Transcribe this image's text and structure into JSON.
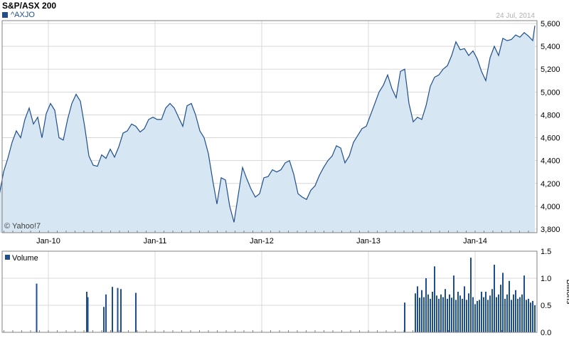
{
  "header": {
    "title": "S&P/ASX 200",
    "symbol": "^AXJO",
    "date": "24 Jul, 2014"
  },
  "watermark": "© Yahoo!7",
  "colors": {
    "line": "#1f4e8c",
    "fill": "#d6e6f2",
    "grid": "#d8d8d8",
    "axis": "#808080",
    "bars": "#1f4e8c"
  },
  "chart_data": [
    {
      "type": "area",
      "title": "S&P/ASX 200",
      "series": [
        {
          "name": "^AXJO",
          "values_note": ""
        }
      ],
      "x_ticks": [
        "Jan-10",
        "Jan-11",
        "Jan-12",
        "Jan-13",
        "Jan-14"
      ],
      "y_ticks": [
        "3,800",
        "4,000",
        "4,200",
        "4,400",
        "4,600",
        "4,800",
        "5,000",
        "5,200",
        "5,400",
        "5,600"
      ],
      "ylim": [
        3760,
        5650
      ],
      "grid": true,
      "points": [
        [
          2009.54,
          4100
        ],
        [
          2009.58,
          4300
        ],
        [
          2009.62,
          4420
        ],
        [
          2009.66,
          4560
        ],
        [
          2009.7,
          4660
        ],
        [
          2009.74,
          4600
        ],
        [
          2009.78,
          4760
        ],
        [
          2009.82,
          4860
        ],
        [
          2009.86,
          4720
        ],
        [
          2009.9,
          4780
        ],
        [
          2009.94,
          4600
        ],
        [
          2009.98,
          4810
        ],
        [
          2010.02,
          4900
        ],
        [
          2010.06,
          4840
        ],
        [
          2010.1,
          4600
        ],
        [
          2010.14,
          4580
        ],
        [
          2010.18,
          4760
        ],
        [
          2010.22,
          4900
        ],
        [
          2010.26,
          4980
        ],
        [
          2010.3,
          4920
        ],
        [
          2010.34,
          4700
        ],
        [
          2010.38,
          4440
        ],
        [
          2010.42,
          4360
        ],
        [
          2010.46,
          4350
        ],
        [
          2010.5,
          4450
        ],
        [
          2010.54,
          4420
        ],
        [
          2010.58,
          4500
        ],
        [
          2010.62,
          4430
        ],
        [
          2010.66,
          4520
        ],
        [
          2010.7,
          4640
        ],
        [
          2010.74,
          4660
        ],
        [
          2010.78,
          4720
        ],
        [
          2010.82,
          4700
        ],
        [
          2010.86,
          4650
        ],
        [
          2010.9,
          4680
        ],
        [
          2010.94,
          4760
        ],
        [
          2010.98,
          4780
        ],
        [
          2011.02,
          4760
        ],
        [
          2011.06,
          4760
        ],
        [
          2011.1,
          4860
        ],
        [
          2011.14,
          4900
        ],
        [
          2011.18,
          4860
        ],
        [
          2011.22,
          4780
        ],
        [
          2011.26,
          4700
        ],
        [
          2011.3,
          4880
        ],
        [
          2011.34,
          4900
        ],
        [
          2011.38,
          4800
        ],
        [
          2011.42,
          4660
        ],
        [
          2011.46,
          4600
        ],
        [
          2011.5,
          4460
        ],
        [
          2011.54,
          4230
        ],
        [
          2011.58,
          4020
        ],
        [
          2011.62,
          4250
        ],
        [
          2011.66,
          4230
        ],
        [
          2011.7,
          4000
        ],
        [
          2011.74,
          3860
        ],
        [
          2011.78,
          4100
        ],
        [
          2011.82,
          4340
        ],
        [
          2011.86,
          4240
        ],
        [
          2011.9,
          4150
        ],
        [
          2011.94,
          4080
        ],
        [
          2011.98,
          4110
        ],
        [
          2012.02,
          4250
        ],
        [
          2012.06,
          4260
        ],
        [
          2012.1,
          4320
        ],
        [
          2012.14,
          4300
        ],
        [
          2012.18,
          4320
        ],
        [
          2012.22,
          4380
        ],
        [
          2012.26,
          4400
        ],
        [
          2012.3,
          4280
        ],
        [
          2012.34,
          4110
        ],
        [
          2012.38,
          4080
        ],
        [
          2012.42,
          4060
        ],
        [
          2012.46,
          4140
        ],
        [
          2012.5,
          4180
        ],
        [
          2012.54,
          4270
        ],
        [
          2012.58,
          4340
        ],
        [
          2012.62,
          4400
        ],
        [
          2012.66,
          4440
        ],
        [
          2012.7,
          4530
        ],
        [
          2012.74,
          4510
        ],
        [
          2012.78,
          4380
        ],
        [
          2012.82,
          4440
        ],
        [
          2012.86,
          4560
        ],
        [
          2012.9,
          4620
        ],
        [
          2012.94,
          4680
        ],
        [
          2012.98,
          4700
        ],
        [
          2013.02,
          4800
        ],
        [
          2013.06,
          4900
        ],
        [
          2013.1,
          5000
        ],
        [
          2013.14,
          5060
        ],
        [
          2013.18,
          5150
        ],
        [
          2013.22,
          5030
        ],
        [
          2013.26,
          4950
        ],
        [
          2013.3,
          5180
        ],
        [
          2013.34,
          5200
        ],
        [
          2013.38,
          4900
        ],
        [
          2013.42,
          4740
        ],
        [
          2013.46,
          4780
        ],
        [
          2013.5,
          4760
        ],
        [
          2013.54,
          4880
        ],
        [
          2013.58,
          5050
        ],
        [
          2013.62,
          5130
        ],
        [
          2013.66,
          5150
        ],
        [
          2013.7,
          5200
        ],
        [
          2013.74,
          5230
        ],
        [
          2013.78,
          5320
        ],
        [
          2013.82,
          5440
        ],
        [
          2013.86,
          5370
        ],
        [
          2013.9,
          5380
        ],
        [
          2013.94,
          5320
        ],
        [
          2013.98,
          5360
        ],
        [
          2014.02,
          5290
        ],
        [
          2014.06,
          5180
        ],
        [
          2014.1,
          5100
        ],
        [
          2014.14,
          5300
        ],
        [
          2014.18,
          5400
        ],
        [
          2014.22,
          5320
        ],
        [
          2014.26,
          5470
        ],
        [
          2014.3,
          5450
        ],
        [
          2014.34,
          5460
        ],
        [
          2014.38,
          5500
        ],
        [
          2014.42,
          5480
        ],
        [
          2014.46,
          5520
        ],
        [
          2014.5,
          5490
        ],
        [
          2014.54,
          5450
        ],
        [
          2014.56,
          5580
        ]
      ]
    },
    {
      "type": "bar",
      "title": "Volume",
      "series": [
        {
          "name": "Volume"
        }
      ],
      "ylabel": "Billions",
      "y_ticks": [
        "0.0",
        "0.5",
        "1.0",
        "1.5"
      ],
      "ylim": [
        0,
        1.5
      ],
      "grid": true,
      "bars": [
        [
          2009.89,
          0.9
        ],
        [
          2010.36,
          0.75
        ],
        [
          2010.37,
          0.65
        ],
        [
          2010.52,
          0.47
        ],
        [
          2010.54,
          0.7
        ],
        [
          2010.6,
          0.84
        ],
        [
          2010.65,
          0.82
        ],
        [
          2010.68,
          0.8
        ],
        [
          2010.82,
          0.73
        ],
        [
          2013.34,
          0.55
        ],
        [
          2013.44,
          0.72
        ],
        [
          2013.46,
          0.85
        ],
        [
          2013.48,
          0.64
        ],
        [
          2013.5,
          0.78
        ],
        [
          2013.52,
          0.65
        ],
        [
          2013.54,
          1.0
        ],
        [
          2013.56,
          0.7
        ],
        [
          2013.58,
          0.62
        ],
        [
          2013.6,
          0.75
        ],
        [
          2013.62,
          1.22
        ],
        [
          2013.64,
          0.68
        ],
        [
          2013.66,
          0.62
        ],
        [
          2013.68,
          0.7
        ],
        [
          2013.7,
          0.65
        ],
        [
          2013.72,
          0.8
        ],
        [
          2013.74,
          0.62
        ],
        [
          2013.76,
          0.7
        ],
        [
          2013.78,
          0.64
        ],
        [
          2013.8,
          1.05
        ],
        [
          2013.82,
          0.6
        ],
        [
          2013.84,
          0.75
        ],
        [
          2013.86,
          0.68
        ],
        [
          2013.88,
          0.62
        ],
        [
          2013.9,
          0.85
        ],
        [
          2013.92,
          0.6
        ],
        [
          2013.94,
          0.72
        ],
        [
          2013.96,
          1.38
        ],
        [
          2013.98,
          0.65
        ],
        [
          2014.0,
          0.52
        ],
        [
          2014.02,
          0.58
        ],
        [
          2014.04,
          0.6
        ],
        [
          2014.06,
          0.75
        ],
        [
          2014.08,
          0.65
        ],
        [
          2014.1,
          0.75
        ],
        [
          2014.12,
          0.6
        ],
        [
          2014.14,
          0.68
        ],
        [
          2014.16,
          0.8
        ],
        [
          2014.18,
          1.25
        ],
        [
          2014.2,
          0.65
        ],
        [
          2014.22,
          0.7
        ],
        [
          2014.24,
          0.88
        ],
        [
          2014.26,
          1.1
        ],
        [
          2014.28,
          0.62
        ],
        [
          2014.3,
          0.7
        ],
        [
          2014.32,
          0.95
        ],
        [
          2014.34,
          0.6
        ],
        [
          2014.36,
          0.7
        ],
        [
          2014.38,
          0.78
        ],
        [
          2014.4,
          0.62
        ],
        [
          2014.42,
          0.65
        ],
        [
          2014.44,
          0.7
        ],
        [
          2014.46,
          1.05
        ],
        [
          2014.48,
          0.6
        ],
        [
          2014.5,
          0.62
        ],
        [
          2014.52,
          0.55
        ],
        [
          2014.54,
          0.58
        ],
        [
          2014.56,
          0.5
        ]
      ]
    }
  ]
}
